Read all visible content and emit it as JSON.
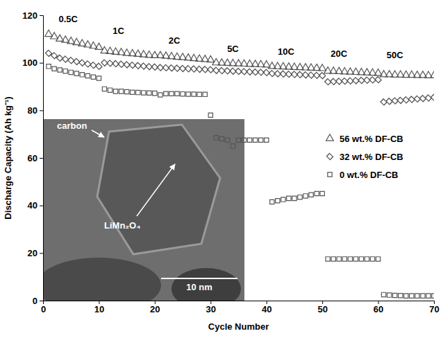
{
  "chart_data": {
    "type": "scatter",
    "x_label": "Cycle Number",
    "y_label": "Discharge Capacity (Ah kg⁻¹)",
    "x": [
      1,
      2,
      3,
      4,
      5,
      6,
      7,
      8,
      9,
      10,
      11,
      12,
      13,
      14,
      15,
      16,
      17,
      18,
      19,
      20,
      21,
      22,
      23,
      24,
      25,
      26,
      27,
      28,
      29,
      30,
      31,
      32,
      33,
      34,
      35,
      36,
      37,
      38,
      39,
      40,
      41,
      42,
      43,
      44,
      45,
      46,
      47,
      48,
      49,
      50,
      51,
      52,
      53,
      54,
      55,
      56,
      57,
      58,
      59,
      60,
      61,
      62,
      63,
      64,
      65,
      66,
      67,
      68,
      69,
      70
    ],
    "series": [
      {
        "name": "56 wt.% DF-CB",
        "color": "#555555",
        "marker": "triangle",
        "values": [
          112,
          111,
          110,
          109.5,
          109,
          108.5,
          108,
          107.5,
          107,
          106.5,
          105,
          104.8,
          104.5,
          104.3,
          104,
          103.8,
          103.6,
          103.4,
          103.2,
          103,
          103,
          102.8,
          102.6,
          102.4,
          102.2,
          102,
          101.8,
          101.6,
          101.4,
          101.2,
          100,
          99.9,
          99.8,
          99.7,
          99.6,
          99.5,
          99.4,
          99.3,
          99.2,
          99.1,
          98.5,
          98.4,
          98.3,
          98.2,
          98.1,
          98,
          97.9,
          97.8,
          97.7,
          97.6,
          96.5,
          96.4,
          96.3,
          96.2,
          96.1,
          96,
          95.9,
          95.8,
          95.7,
          95.6,
          95,
          95,
          94.9,
          94.9,
          94.8,
          94.8,
          94.7,
          94.7,
          94.6,
          94.6
        ]
      },
      {
        "name": "32 wt.% DF-CB",
        "color": "#555555",
        "marker": "diamond",
        "values": [
          104,
          103,
          102,
          101.5,
          101,
          100.5,
          100,
          99.5,
          99,
          98.5,
          100,
          99.8,
          99.6,
          99.4,
          99.2,
          99,
          98.8,
          98.6,
          98.4,
          98.2,
          98,
          97.9,
          97.8,
          97.7,
          97.6,
          97.5,
          97.4,
          97.3,
          97.2,
          97.1,
          96.8,
          96.7,
          96.6,
          96.5,
          96.4,
          96.3,
          96.2,
          96.1,
          96,
          95.9,
          95.5,
          95.4,
          95.3,
          95.2,
          95.1,
          95,
          94.9,
          94.8,
          94.7,
          94.6,
          92,
          92.1,
          92.2,
          92.3,
          92.4,
          92.5,
          92.6,
          92.7,
          92.8,
          92.9,
          83.5,
          83.8,
          84,
          84.2,
          84.4,
          84.6,
          84.8,
          85,
          85.2,
          85.4
        ]
      },
      {
        "name": "0 wt.% DF-CB",
        "color": "#555555",
        "marker": "square",
        "values": [
          98.5,
          97.5,
          97,
          96.5,
          96,
          95.5,
          95,
          94.5,
          94,
          93.5,
          89,
          88.5,
          88,
          88,
          87.8,
          87.6,
          87.5,
          87.4,
          87.3,
          87.2,
          86.5,
          87,
          87,
          87,
          86.9,
          86.8,
          86.8,
          86.7,
          86.7,
          78,
          68.5,
          68,
          67.5,
          65,
          67.5,
          67.5,
          67.5,
          67.5,
          67.5,
          67.5,
          41.5,
          42,
          42.5,
          43,
          43,
          43.5,
          44,
          44.5,
          45,
          45,
          17.5,
          17.5,
          17.5,
          17.5,
          17.5,
          17.5,
          17.5,
          17.5,
          17.5,
          17.5,
          2.5,
          2.3,
          2.2,
          2.1,
          2,
          2,
          2,
          2,
          2,
          2
        ]
      }
    ],
    "xlim": [
      0,
      70
    ],
    "xticks": [
      0,
      10,
      20,
      30,
      40,
      50,
      60,
      70
    ],
    "ylim": [
      0,
      120
    ],
    "yticks": [
      0,
      20,
      40,
      60,
      80,
      100,
      120
    ],
    "grid": false,
    "legend": "right",
    "annotations": [
      {
        "text": "0.5C",
        "x": 4.5,
        "y": 117
      },
      {
        "text": "1C",
        "x": 13.5,
        "y": 112
      },
      {
        "text": "2C",
        "x": 23.5,
        "y": 108
      },
      {
        "text": "5C",
        "x": 34,
        "y": 104.5
      },
      {
        "text": "10C",
        "x": 43.5,
        "y": 103.5
      },
      {
        "text": "20C",
        "x": 53,
        "y": 102.5
      },
      {
        "text": "50C",
        "x": 63,
        "y": 102
      }
    ],
    "inset": {
      "labels": [
        "carbon",
        "LiMn₂O₄",
        "10 nm"
      ]
    }
  }
}
